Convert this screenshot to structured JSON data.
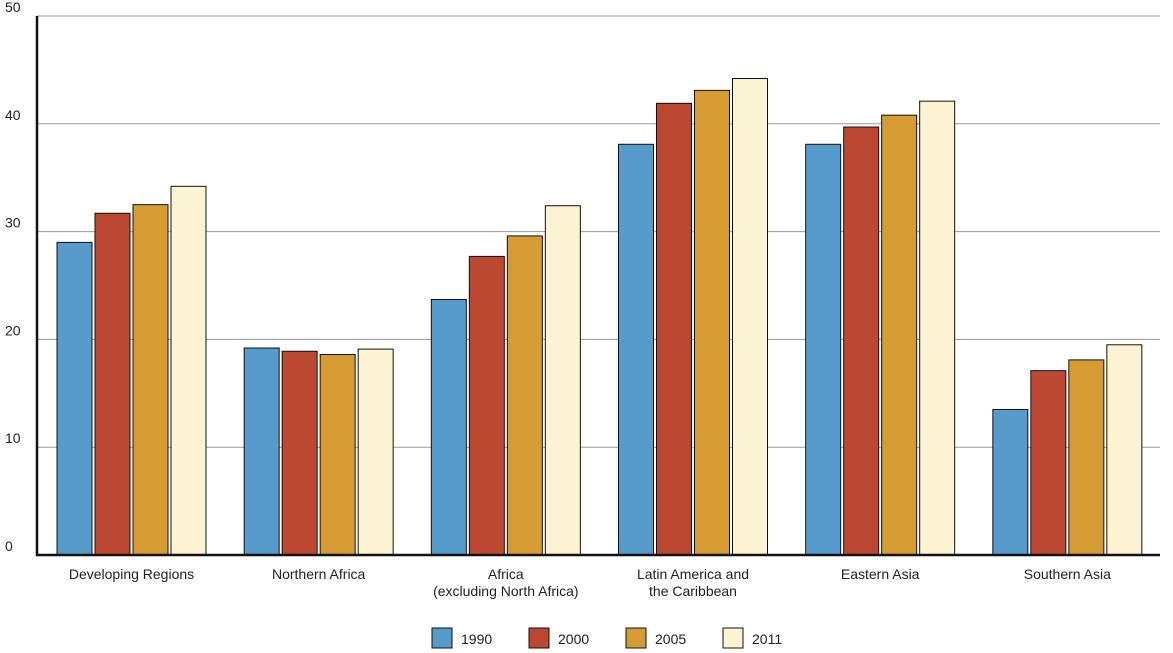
{
  "chart_data": {
    "type": "bar",
    "title": "",
    "xlabel": "",
    "ylabel": "",
    "ylim": [
      0,
      50
    ],
    "yticks": [
      0,
      10,
      20,
      30,
      40,
      50
    ],
    "grid": true,
    "legend_position": "bottom",
    "categories": [
      [
        "Developing Regions"
      ],
      [
        "Northern Africa"
      ],
      [
        "Africa",
        "(excluding North Africa)"
      ],
      [
        "Latin America and",
        "the Caribbean"
      ],
      [
        "Eastern Asia"
      ],
      [
        "Southern Asia"
      ]
    ],
    "series": [
      {
        "name": "1990",
        "color": "#579bcc",
        "values": [
          29,
          19.2,
          23.7,
          38.1,
          38.1,
          13.5
        ]
      },
      {
        "name": "2000",
        "color": "#bd4831",
        "values": [
          31.7,
          18.9,
          27.7,
          41.9,
          39.7,
          17.1
        ]
      },
      {
        "name": "2005",
        "color": "#d79b33",
        "values": [
          32.5,
          18.6,
          29.6,
          43.1,
          40.8,
          18.1
        ]
      },
      {
        "name": "2011",
        "color": "#fcf3d3",
        "values": [
          34.2,
          19.1,
          32.4,
          44.2,
          42.1,
          19.5
        ]
      }
    ]
  }
}
